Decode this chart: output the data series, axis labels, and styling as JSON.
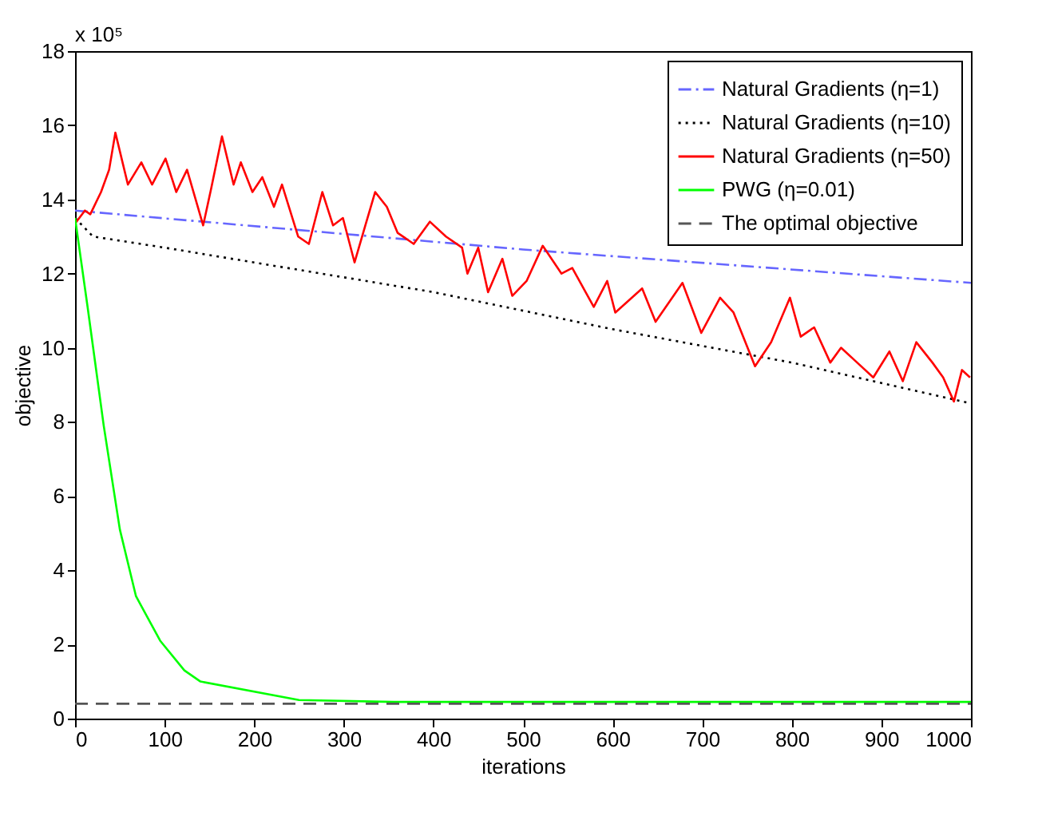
{
  "chart_data": {
    "type": "line",
    "xlabel": "iterations",
    "ylabel": "objective",
    "annotations": [
      "x 10⁵"
    ],
    "xlim": [
      0,
      1000
    ],
    "xticks": [
      0,
      100,
      200,
      300,
      400,
      500,
      600,
      700,
      800,
      900,
      1000
    ],
    "ylim": [
      0,
      18
    ],
    "yticks": [
      0,
      2,
      4,
      6,
      8,
      10,
      12,
      14,
      16,
      18
    ],
    "grid": false,
    "legend": "top right",
    "marker": "none",
    "series": [
      {
        "name": "Natural Gradients (η=1)",
        "color": "#6666ff",
        "line_style": "dashdot",
        "x": [
          0,
          500,
          1000
        ],
        "values": [
          13.7,
          12.65,
          11.75
        ]
      },
      {
        "name": "Natural Gradients (η=10)",
        "color": "#000000",
        "line_style": "dotted",
        "x": [
          0,
          20,
          100,
          200,
          400,
          600,
          800,
          1000
        ],
        "values": [
          13.5,
          13.0,
          12.7,
          12.3,
          11.5,
          10.5,
          9.6,
          8.5
        ]
      },
      {
        "name": "Natural Gradients (η=50)",
        "color": "#ff0000",
        "line_style": "solid",
        "x": [
          0,
          11,
          17,
          29,
          38,
          45,
          53,
          59,
          74,
          86,
          101,
          113,
          125,
          143,
          152,
          164,
          177,
          185,
          198,
          209,
          222,
          231,
          249,
          261,
          276,
          288,
          299,
          312,
          324,
          335,
          348,
          360,
          378,
          396,
          414,
          432,
          438,
          450,
          461,
          477,
          488,
          504,
          522,
          543,
          555,
          579,
          594,
          603,
          633,
          648,
          678,
          699,
          720,
          735,
          759,
          777,
          798,
          810,
          825,
          843,
          855,
          873,
          891,
          909,
          924,
          939,
          957,
          969,
          981,
          990,
          999
        ],
        "values": [
          13.35,
          13.7,
          13.6,
          14.2,
          14.8,
          15.8,
          15.0,
          14.4,
          15.0,
          14.4,
          15.1,
          14.2,
          14.8,
          13.3,
          14.3,
          15.7,
          14.4,
          15.0,
          14.2,
          14.6,
          13.8,
          14.4,
          13.0,
          12.8,
          14.2,
          13.3,
          13.5,
          12.3,
          13.3,
          14.2,
          13.8,
          13.1,
          12.8,
          13.4,
          13.0,
          12.7,
          12.0,
          12.7,
          11.5,
          12.4,
          11.4,
          11.8,
          12.75,
          12.0,
          12.15,
          11.1,
          11.8,
          10.95,
          11.6,
          10.7,
          11.75,
          10.4,
          11.35,
          10.95,
          9.5,
          10.15,
          11.35,
          10.3,
          10.55,
          9.6,
          10.0,
          9.6,
          9.2,
          9.9,
          9.1,
          10.15,
          9.6,
          9.2,
          8.55,
          9.4,
          9.2
        ]
      },
      {
        "name": "PWG (η=0.01)",
        "color": "#00ff00",
        "line_style": "solid",
        "x": [
          0,
          14,
          32,
          50,
          68,
          95,
          122,
          140,
          250,
          356,
          1000
        ],
        "values": [
          13.5,
          11.1,
          7.9,
          5.1,
          3.3,
          2.1,
          1.3,
          1.0,
          0.5,
          0.45,
          0.45
        ]
      },
      {
        "name": "The optimal objective",
        "color": "#555555",
        "line_style": "dashed",
        "x": [
          0,
          1000
        ],
        "values": [
          0.4,
          0.4
        ]
      }
    ]
  }
}
